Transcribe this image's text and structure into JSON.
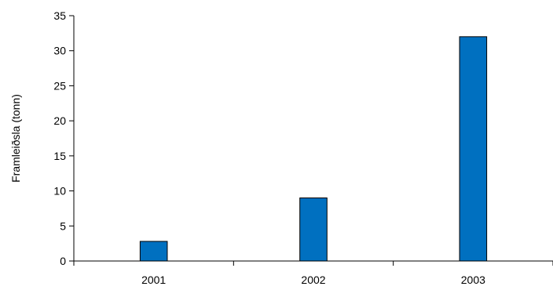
{
  "chart_data": {
    "type": "bar",
    "title": "",
    "xlabel": "",
    "ylabel": "Framleiðsla (tonn)",
    "categories": [
      "2001",
      "2002",
      "2003"
    ],
    "series": [
      {
        "values": [
          2.8,
          9,
          32
        ]
      }
    ],
    "ylim": [
      0,
      35
    ],
    "yticks": [
      "0",
      "5",
      "10",
      "15",
      "20",
      "25",
      "30",
      "35"
    ],
    "bar_color": "#0070C0",
    "bar_outline_color": "#000000",
    "grid": false,
    "legend": "none"
  }
}
